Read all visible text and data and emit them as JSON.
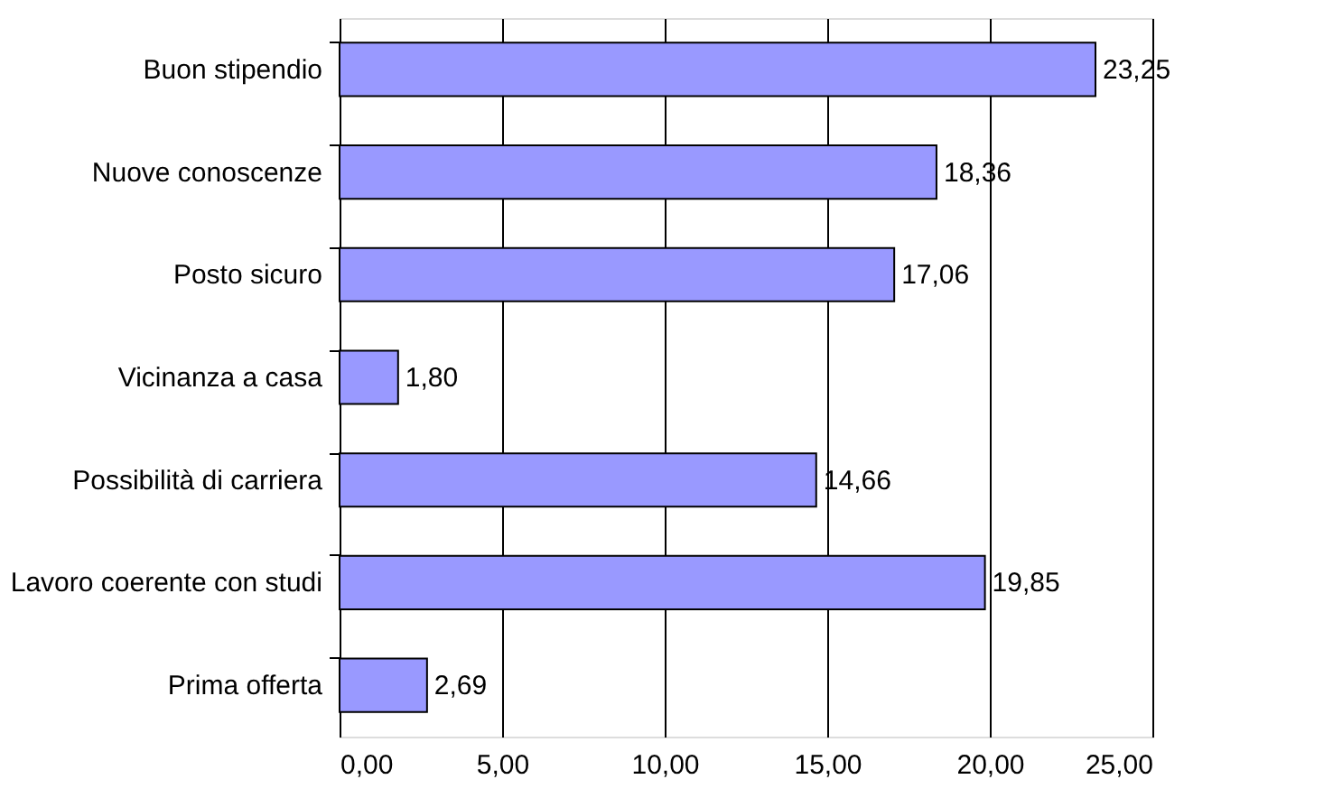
{
  "chart_data": {
    "type": "bar",
    "orientation": "horizontal",
    "categories": [
      "Buon stipendio",
      "Nuove conoscenze",
      "Posto sicuro",
      "Vicinanza a casa",
      "Possibilità di carriera",
      "Lavoro coerente con studi",
      "Prima offerta"
    ],
    "values": [
      23.25,
      18.36,
      17.06,
      1.8,
      14.66,
      19.85,
      2.69
    ],
    "value_labels": [
      "23,25",
      "18,36",
      "17,06",
      "1,80",
      "14,66",
      "19,85",
      "2,69"
    ],
    "color": "#9999ff",
    "xlim": [
      0,
      25
    ],
    "xticks": [
      {
        "value": 0,
        "label": "0,00"
      },
      {
        "value": 5,
        "label": "5,00"
      },
      {
        "value": 10,
        "label": "10,00"
      },
      {
        "value": 15,
        "label": "15,00"
      },
      {
        "value": 20,
        "label": "20,00"
      },
      {
        "value": 25,
        "label": "25,00"
      }
    ],
    "grid": "x"
  }
}
